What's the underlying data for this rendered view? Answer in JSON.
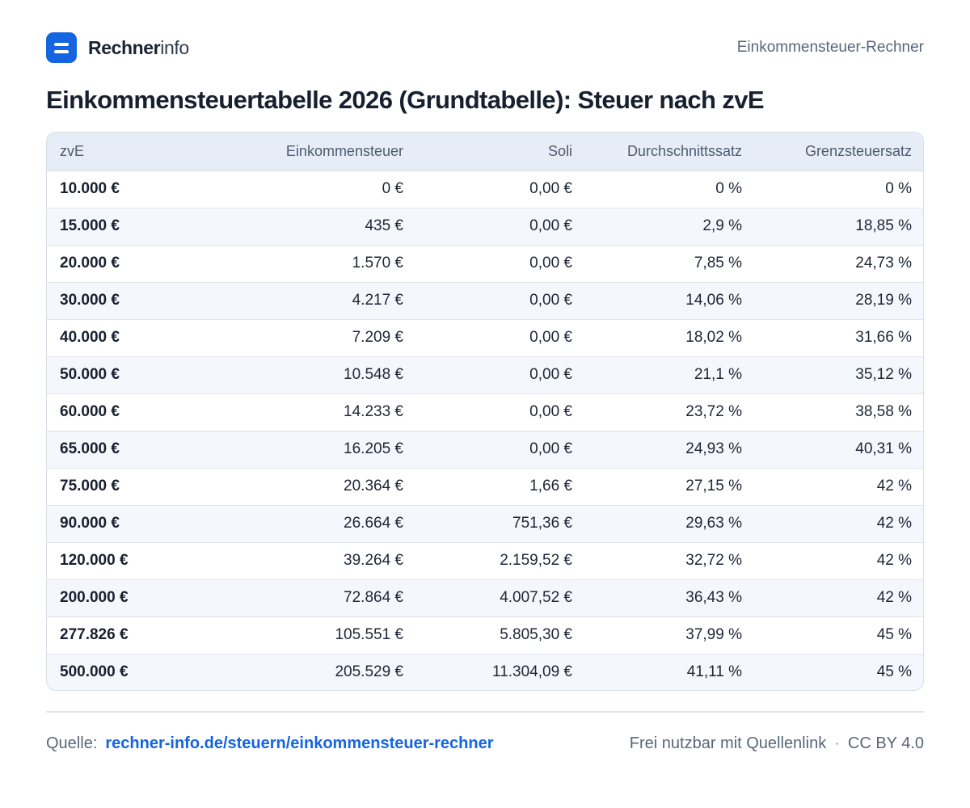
{
  "brand": {
    "name_bold": "Rechner",
    "name_light": "info"
  },
  "header": {
    "page_label": "Einkommensteuer-Rechner"
  },
  "title": "Einkommensteuertabelle 2026 (Grundtabelle): Steuer nach zvE",
  "table": {
    "columns": [
      "zvE",
      "Einkommensteuer",
      "Soli",
      "Durchschnittssatz",
      "Grenzsteuersatz"
    ],
    "rows": [
      [
        "10.000 €",
        "0 €",
        "0,00 €",
        "0 %",
        "0 %"
      ],
      [
        "15.000 €",
        "435 €",
        "0,00 €",
        "2,9 %",
        "18,85 %"
      ],
      [
        "20.000 €",
        "1.570 €",
        "0,00 €",
        "7,85 %",
        "24,73 %"
      ],
      [
        "30.000 €",
        "4.217 €",
        "0,00 €",
        "14,06 %",
        "28,19 %"
      ],
      [
        "40.000 €",
        "7.209 €",
        "0,00 €",
        "18,02 %",
        "31,66 %"
      ],
      [
        "50.000 €",
        "10.548 €",
        "0,00 €",
        "21,1 %",
        "35,12 %"
      ],
      [
        "60.000 €",
        "14.233 €",
        "0,00 €",
        "23,72 %",
        "38,58 %"
      ],
      [
        "65.000 €",
        "16.205 €",
        "0,00 €",
        "24,93 %",
        "40,31 %"
      ],
      [
        "75.000 €",
        "20.364 €",
        "1,66 €",
        "27,15 %",
        "42 %"
      ],
      [
        "90.000 €",
        "26.664 €",
        "751,36 €",
        "29,63 %",
        "42 %"
      ],
      [
        "120.000 €",
        "39.264 €",
        "2.159,52 €",
        "32,72 %",
        "42 %"
      ],
      [
        "200.000 €",
        "72.864 €",
        "4.007,52 €",
        "36,43 %",
        "42 %"
      ],
      [
        "277.826 €",
        "105.551 €",
        "5.805,30 €",
        "37,99 %",
        "45 %"
      ],
      [
        "500.000 €",
        "205.529 €",
        "11.304,09 €",
        "41,11 %",
        "45 %"
      ]
    ]
  },
  "footer": {
    "source_label": "Quelle:",
    "source_link": "rechner-info.de/steuern/einkommensteuer-rechner",
    "license_text": "Frei nutzbar mit Quellenlink",
    "separator": "·",
    "license": "CC BY 4.0"
  },
  "colors": {
    "accent": "#1565e0",
    "header_bg": "#e6edf6",
    "row_alt": "#f4f7fb"
  }
}
